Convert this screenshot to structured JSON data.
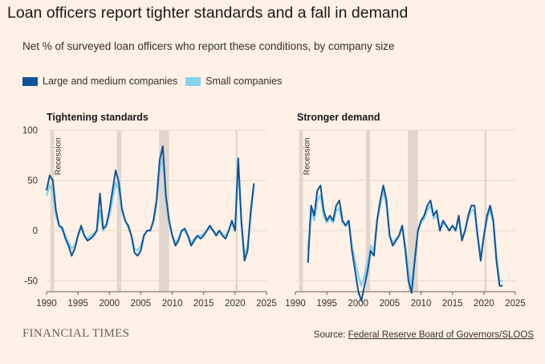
{
  "header": {
    "title": "Loan officers report tighter standards and a fall in demand",
    "subtitle": "Net % of surveyed loan officers who report these conditions, by company size"
  },
  "legend": {
    "items": [
      {
        "label": "Large and medium companies",
        "color": "#0f5499"
      },
      {
        "label": "Small companies",
        "color": "#8ad3ee"
      }
    ]
  },
  "footer": {
    "logo": "FINANCIAL TIMES",
    "source_prefix": "Source: ",
    "source_link": "Federal Reserve Board of Governors/SLOOS"
  },
  "colors": {
    "background": "#fff1e5",
    "recession": "#e2d5cb",
    "large": "#0f5499",
    "small": "#8ad3ee"
  },
  "chart_data": [
    {
      "type": "line",
      "title": "Tightening standards",
      "recession_label": "Recession",
      "recessions": [
        [
          1990.6,
          1991.2
        ],
        [
          2001.2,
          2001.9
        ],
        [
          2007.9,
          2009.5
        ],
        [
          2020.1,
          2020.4
        ]
      ],
      "xlim": [
        1990,
        2025
      ],
      "ylim": [
        -60,
        100
      ],
      "x_ticks": [
        1990,
        1995,
        2000,
        2005,
        2010,
        2015,
        2020,
        2025
      ],
      "y_ticks": [
        100,
        50,
        0,
        -50
      ],
      "series": [
        {
          "name": "Large and medium companies",
          "x": [
            1990.0,
            1990.5,
            1991.0,
            1991.5,
            1992.0,
            1992.5,
            1993.0,
            1993.5,
            1994.0,
            1994.5,
            1995.0,
            1995.5,
            1996.0,
            1996.5,
            1997.0,
            1997.5,
            1998.0,
            1998.5,
            1999.0,
            1999.5,
            2000.0,
            2000.5,
            2001.0,
            2001.5,
            2002.0,
            2002.5,
            2003.0,
            2003.5,
            2004.0,
            2004.5,
            2005.0,
            2005.5,
            2006.0,
            2006.5,
            2007.0,
            2007.5,
            2008.0,
            2008.5,
            2009.0,
            2009.5,
            2010.0,
            2010.5,
            2011.0,
            2011.5,
            2012.0,
            2012.5,
            2013.0,
            2013.5,
            2014.0,
            2014.5,
            2015.0,
            2015.5,
            2016.0,
            2016.5,
            2017.0,
            2017.5,
            2018.0,
            2018.5,
            2019.0,
            2019.5,
            2020.0,
            2020.5,
            2021.0,
            2021.5,
            2022.0,
            2022.5,
            2023.0
          ],
          "values": [
            40,
            55,
            50,
            20,
            5,
            3,
            -8,
            -15,
            -25,
            -18,
            -5,
            5,
            -5,
            -10,
            -8,
            -5,
            0,
            37,
            2,
            5,
            20,
            40,
            60,
            48,
            22,
            10,
            5,
            -5,
            -22,
            -25,
            -20,
            -5,
            0,
            0,
            10,
            30,
            70,
            84,
            35,
            10,
            -5,
            -15,
            -10,
            0,
            2,
            -5,
            -15,
            -10,
            -5,
            -8,
            -5,
            0,
            5,
            0,
            -5,
            0,
            -5,
            -8,
            0,
            10,
            0,
            72,
            10,
            -30,
            -20,
            20,
            47
          ]
        },
        {
          "name": "Small companies",
          "x": [
            1990.0,
            1990.5,
            1991.0,
            1991.5,
            1992.0,
            1992.5,
            1993.0,
            1993.5,
            1994.0,
            1994.5,
            1995.0,
            1995.5,
            1996.0,
            1996.5,
            1997.0,
            1997.5,
            1998.0,
            1998.5,
            1999.0,
            1999.5,
            2000.0,
            2000.5,
            2001.0,
            2001.5,
            2002.0,
            2002.5,
            2003.0,
            2003.5,
            2004.0,
            2004.5,
            2005.0,
            2005.5,
            2006.0,
            2006.5,
            2007.0,
            2007.5,
            2008.0,
            2008.5,
            2009.0,
            2009.5,
            2010.0,
            2010.5,
            2011.0,
            2011.5,
            2012.0,
            2012.5,
            2013.0,
            2013.5,
            2014.0,
            2014.5,
            2015.0,
            2015.5,
            2016.0,
            2016.5,
            2017.0,
            2017.5,
            2018.0,
            2018.5,
            2019.0,
            2019.5,
            2020.0,
            2020.5,
            2021.0,
            2021.5,
            2022.0,
            2022.5,
            2023.0
          ],
          "values": [
            35,
            45,
            40,
            15,
            5,
            0,
            -5,
            -12,
            -18,
            -15,
            -5,
            3,
            -5,
            -8,
            -5,
            -3,
            0,
            20,
            0,
            5,
            15,
            30,
            48,
            40,
            20,
            10,
            3,
            -5,
            -18,
            -20,
            -15,
            -5,
            0,
            0,
            8,
            25,
            60,
            72,
            30,
            8,
            -5,
            -12,
            -8,
            0,
            0,
            -5,
            -12,
            -8,
            -5,
            -5,
            -3,
            0,
            3,
            0,
            -3,
            0,
            -3,
            -5,
            0,
            8,
            0,
            65,
            8,
            -25,
            -15,
            15,
            44
          ]
        }
      ]
    },
    {
      "type": "line",
      "title": "Stronger demand",
      "recession_label": "Recession",
      "recessions": [
        [
          1990.6,
          1991.2
        ],
        [
          2001.2,
          2001.9
        ],
        [
          2007.9,
          2009.5
        ],
        [
          2020.1,
          2020.4
        ]
      ],
      "xlim": [
        1990,
        2025
      ],
      "ylim": [
        -60,
        100
      ],
      "x_ticks": [
        1990,
        1995,
        2000,
        2005,
        2010,
        2015,
        2020,
        2025
      ],
      "y_ticks": [
        100,
        50,
        0,
        -50
      ],
      "series": [
        {
          "name": "Large and medium companies",
          "x": [
            1992.0,
            1992.5,
            1993.0,
            1993.5,
            1994.0,
            1994.5,
            1995.0,
            1995.5,
            1996.0,
            1996.5,
            1997.0,
            1997.5,
            1998.0,
            1998.5,
            1999.0,
            1999.5,
            2000.0,
            2000.5,
            2001.0,
            2001.5,
            2002.0,
            2002.5,
            2003.0,
            2003.5,
            2004.0,
            2004.5,
            2005.0,
            2005.5,
            2006.0,
            2006.5,
            2007.0,
            2007.5,
            2008.0,
            2008.5,
            2009.0,
            2009.5,
            2010.0,
            2010.5,
            2011.0,
            2011.5,
            2012.0,
            2012.5,
            2013.0,
            2013.5,
            2014.0,
            2014.5,
            2015.0,
            2015.5,
            2016.0,
            2016.5,
            2017.0,
            2017.5,
            2018.0,
            2018.5,
            2019.0,
            2019.5,
            2020.0,
            2020.5,
            2021.0,
            2021.5,
            2022.0,
            2022.5,
            2023.0
          ],
          "values": [
            -32,
            25,
            15,
            40,
            45,
            20,
            10,
            15,
            10,
            25,
            30,
            10,
            5,
            10,
            -20,
            -40,
            -60,
            -70,
            -55,
            -40,
            -20,
            -25,
            10,
            30,
            45,
            30,
            -5,
            -15,
            -10,
            -5,
            5,
            -20,
            -50,
            -62,
            -30,
            0,
            10,
            15,
            25,
            30,
            15,
            20,
            0,
            10,
            5,
            0,
            5,
            0,
            15,
            -10,
            0,
            15,
            25,
            25,
            -5,
            -30,
            -5,
            15,
            25,
            10,
            -30,
            -55,
            -55
          ]
        },
        {
          "name": "Small companies",
          "x": [
            1992.0,
            1992.5,
            1993.0,
            1993.5,
            1994.0,
            1994.5,
            1995.0,
            1995.5,
            1996.0,
            1996.5,
            1997.0,
            1997.5,
            1998.0,
            1998.5,
            1999.0,
            1999.5,
            2000.0,
            2000.5,
            2001.0,
            2001.5,
            2002.0,
            2002.5,
            2003.0,
            2003.5,
            2004.0,
            2004.5,
            2005.0,
            2005.5,
            2006.0,
            2006.5,
            2007.0,
            2007.5,
            2008.0,
            2008.5,
            2009.0,
            2009.5,
            2010.0,
            2010.5,
            2011.0,
            2011.5,
            2012.0,
            2012.5,
            2013.0,
            2013.5,
            2014.0,
            2014.5,
            2015.0,
            2015.5,
            2016.0,
            2016.5,
            2017.0,
            2017.5,
            2018.0,
            2018.5,
            2019.0,
            2019.5,
            2020.0,
            2020.5,
            2021.0,
            2021.5,
            2022.0,
            2022.5,
            2023.0
          ],
          "values": [
            -20,
            20,
            10,
            30,
            35,
            15,
            8,
            12,
            8,
            20,
            22,
            8,
            5,
            8,
            -15,
            -30,
            -45,
            -55,
            -45,
            -30,
            -15,
            -20,
            10,
            25,
            40,
            25,
            -5,
            -12,
            -8,
            -5,
            5,
            -15,
            -40,
            -55,
            -25,
            0,
            8,
            12,
            20,
            25,
            12,
            15,
            0,
            8,
            5,
            0,
            5,
            0,
            12,
            -8,
            0,
            12,
            20,
            20,
            -5,
            -25,
            -5,
            12,
            20,
            8,
            -25,
            -50,
            -50
          ]
        }
      ]
    }
  ]
}
